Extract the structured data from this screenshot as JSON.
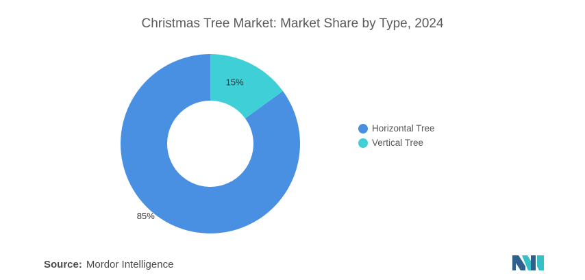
{
  "title": "Christmas Tree Market: Market Share by Type, 2024",
  "source": {
    "label": "Source:",
    "name": "Mordor Intelligence"
  },
  "chart_data": {
    "type": "pie",
    "donut": true,
    "title": "Christmas Tree Market: Market Share by Type, 2024",
    "categories": [
      "Horizontal Tree",
      "Vertical Tree"
    ],
    "values": [
      85,
      15
    ],
    "labels": [
      "85%",
      "15%"
    ],
    "colors": [
      "#4a90e2",
      "#3ed0d6"
    ],
    "legend_position": "right"
  },
  "legend": [
    {
      "label": "Horizontal Tree",
      "color": "#4a90e2"
    },
    {
      "label": "Vertical Tree",
      "color": "#3ed0d6"
    }
  ],
  "logo": {
    "name": "mordor-intelligence-logo",
    "colors": [
      "#2f5f8c",
      "#35c0c8"
    ]
  }
}
